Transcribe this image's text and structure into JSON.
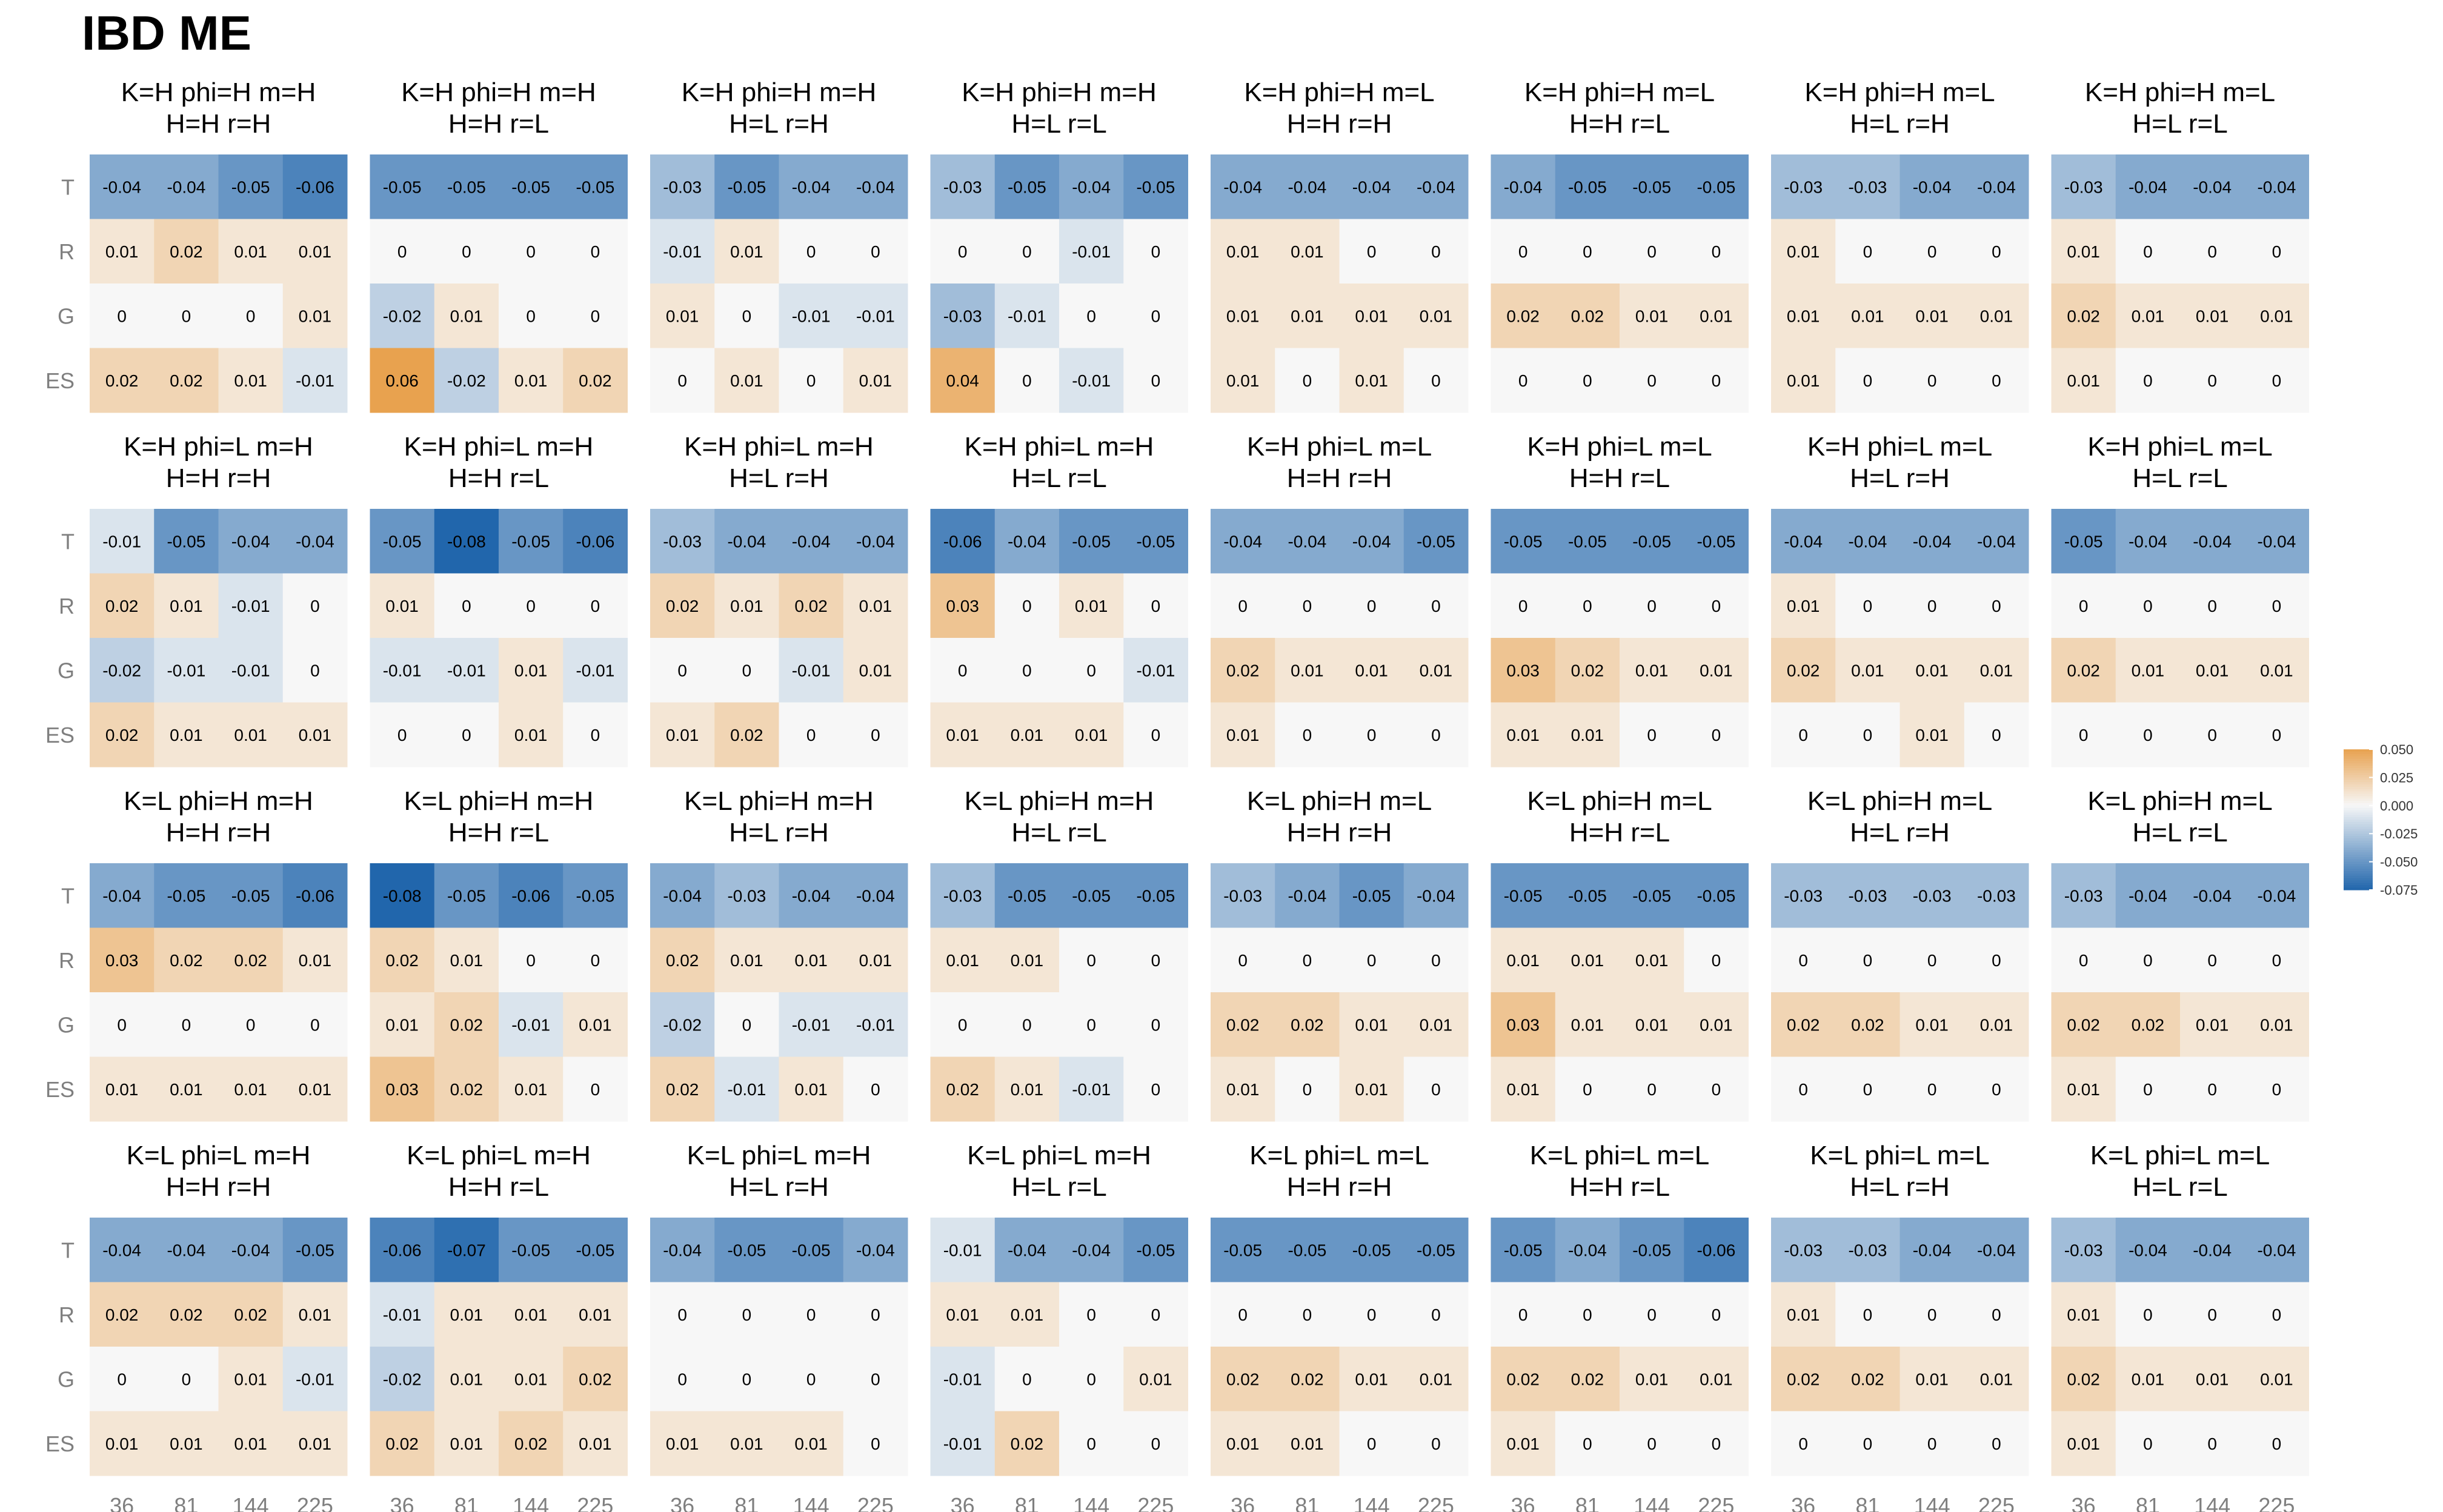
{
  "chart_data": {
    "type": "heatmap",
    "title": "IBD ME",
    "rows": [
      "T",
      "R",
      "G",
      "ES"
    ],
    "columns": [
      "36",
      "81",
      "144",
      "225"
    ],
    "color_scale": {
      "min": -0.075,
      "max": 0.05,
      "low_color": "#2166ac",
      "mid_color": "#f7f7f7",
      "high_color": "#e8a24f",
      "ticks": [
        "0.050",
        "0.025",
        "0.000",
        "-0.025",
        "-0.050",
        "-0.075"
      ],
      "legend_placement": "right"
    },
    "panels": [
      {
        "title": [
          "K=H phi=H m=H",
          "H=H r=H"
        ],
        "values": [
          [
            -0.04,
            -0.04,
            -0.05,
            -0.06
          ],
          [
            0.01,
            0.02,
            0.01,
            0.01
          ],
          [
            0,
            0,
            0,
            0.01
          ],
          [
            0.02,
            0.02,
            0.01,
            -0.01
          ]
        ]
      },
      {
        "title": [
          "K=H phi=H m=H",
          "H=H r=L"
        ],
        "values": [
          [
            -0.05,
            -0.05,
            -0.05,
            -0.05
          ],
          [
            0,
            0,
            0,
            0
          ],
          [
            -0.02,
            0.01,
            0,
            0
          ],
          [
            0.06,
            -0.02,
            0.01,
            0.02
          ]
        ]
      },
      {
        "title": [
          "K=H phi=H m=H",
          "H=L r=H"
        ],
        "values": [
          [
            -0.03,
            -0.05,
            -0.04,
            -0.04
          ],
          [
            -0.01,
            0.01,
            0,
            0
          ],
          [
            0.01,
            0,
            -0.01,
            -0.01
          ],
          [
            0,
            0.01,
            0,
            0.01
          ]
        ]
      },
      {
        "title": [
          "K=H phi=H m=H",
          "H=L r=L"
        ],
        "values": [
          [
            -0.03,
            -0.05,
            -0.04,
            -0.05
          ],
          [
            0,
            0,
            -0.01,
            0
          ],
          [
            -0.03,
            -0.01,
            0,
            0
          ],
          [
            0.04,
            0,
            -0.01,
            0
          ]
        ]
      },
      {
        "title": [
          "K=H phi=H m=L",
          "H=H r=H"
        ],
        "values": [
          [
            -0.04,
            -0.04,
            -0.04,
            -0.04
          ],
          [
            0.01,
            0.01,
            0,
            0
          ],
          [
            0.01,
            0.01,
            0.01,
            0.01
          ],
          [
            0.01,
            0,
            0.01,
            0
          ]
        ]
      },
      {
        "title": [
          "K=H phi=H m=L",
          "H=H r=L"
        ],
        "values": [
          [
            -0.04,
            -0.05,
            -0.05,
            -0.05
          ],
          [
            0,
            0,
            0,
            0
          ],
          [
            0.02,
            0.02,
            0.01,
            0.01
          ],
          [
            0,
            0,
            0,
            0
          ]
        ]
      },
      {
        "title": [
          "K=H phi=H m=L",
          "H=L r=H"
        ],
        "values": [
          [
            -0.03,
            -0.03,
            -0.04,
            -0.04
          ],
          [
            0.01,
            0,
            0,
            0
          ],
          [
            0.01,
            0.01,
            0.01,
            0.01
          ],
          [
            0.01,
            0,
            0,
            0
          ]
        ]
      },
      {
        "title": [
          "K=H phi=H m=L",
          "H=L r=L"
        ],
        "values": [
          [
            -0.03,
            -0.04,
            -0.04,
            -0.04
          ],
          [
            0.01,
            0,
            0,
            0
          ],
          [
            0.02,
            0.01,
            0.01,
            0.01
          ],
          [
            0.01,
            0,
            0,
            0
          ]
        ]
      },
      {
        "title": [
          "K=H phi=L m=H",
          "H=H r=H"
        ],
        "values": [
          [
            -0.01,
            -0.05,
            -0.04,
            -0.04
          ],
          [
            0.02,
            0.01,
            -0.01,
            0
          ],
          [
            -0.02,
            -0.01,
            -0.01,
            0
          ],
          [
            0.02,
            0.01,
            0.01,
            0.01
          ]
        ]
      },
      {
        "title": [
          "K=H phi=L m=H",
          "H=H r=L"
        ],
        "values": [
          [
            -0.05,
            -0.08,
            -0.05,
            -0.06
          ],
          [
            0.01,
            0,
            0,
            0
          ],
          [
            -0.01,
            -0.01,
            0.01,
            -0.01
          ],
          [
            0,
            0,
            0.01,
            0
          ]
        ]
      },
      {
        "title": [
          "K=H phi=L m=H",
          "H=L r=H"
        ],
        "values": [
          [
            -0.03,
            -0.04,
            -0.04,
            -0.04
          ],
          [
            0.02,
            0.01,
            0.02,
            0.01
          ],
          [
            0,
            0,
            -0.01,
            0.01
          ],
          [
            0.01,
            0.02,
            0,
            0
          ]
        ]
      },
      {
        "title": [
          "K=H phi=L m=H",
          "H=L r=L"
        ],
        "values": [
          [
            -0.06,
            -0.04,
            -0.05,
            -0.05
          ],
          [
            0.03,
            0,
            0.01,
            0
          ],
          [
            0,
            0,
            0,
            -0.01
          ],
          [
            0.01,
            0.01,
            0.01,
            0
          ]
        ]
      },
      {
        "title": [
          "K=H phi=L m=L",
          "H=H r=H"
        ],
        "values": [
          [
            -0.04,
            -0.04,
            -0.04,
            -0.05
          ],
          [
            0,
            0,
            0,
            0
          ],
          [
            0.02,
            0.01,
            0.01,
            0.01
          ],
          [
            0.01,
            0,
            0,
            0
          ]
        ]
      },
      {
        "title": [
          "K=H phi=L m=L",
          "H=H r=L"
        ],
        "values": [
          [
            -0.05,
            -0.05,
            -0.05,
            -0.05
          ],
          [
            0,
            0,
            0,
            0
          ],
          [
            0.03,
            0.02,
            0.01,
            0.01
          ],
          [
            0.01,
            0.01,
            0,
            0
          ]
        ]
      },
      {
        "title": [
          "K=H phi=L m=L",
          "H=L r=H"
        ],
        "values": [
          [
            -0.04,
            -0.04,
            -0.04,
            -0.04
          ],
          [
            0.01,
            0,
            0,
            0
          ],
          [
            0.02,
            0.01,
            0.01,
            0.01
          ],
          [
            0,
            0,
            0.01,
            0
          ]
        ]
      },
      {
        "title": [
          "K=H phi=L m=L",
          "H=L r=L"
        ],
        "values": [
          [
            -0.05,
            -0.04,
            -0.04,
            -0.04
          ],
          [
            0,
            0,
            0,
            0
          ],
          [
            0.02,
            0.01,
            0.01,
            0.01
          ],
          [
            0,
            0,
            0,
            0
          ]
        ]
      },
      {
        "title": [
          "K=L phi=H m=H",
          "H=H r=H"
        ],
        "values": [
          [
            -0.04,
            -0.05,
            -0.05,
            -0.06
          ],
          [
            0.03,
            0.02,
            0.02,
            0.01
          ],
          [
            0,
            0,
            0,
            0
          ],
          [
            0.01,
            0.01,
            0.01,
            0.01
          ]
        ]
      },
      {
        "title": [
          "K=L phi=H m=H",
          "H=H r=L"
        ],
        "values": [
          [
            -0.08,
            -0.05,
            -0.06,
            -0.05
          ],
          [
            0.02,
            0.01,
            0,
            0
          ],
          [
            0.01,
            0.02,
            -0.01,
            0.01
          ],
          [
            0.03,
            0.02,
            0.01,
            0
          ]
        ]
      },
      {
        "title": [
          "K=L phi=H m=H",
          "H=L r=H"
        ],
        "values": [
          [
            -0.04,
            -0.03,
            -0.04,
            -0.04
          ],
          [
            0.02,
            0.01,
            0.01,
            0.01
          ],
          [
            -0.02,
            0,
            -0.01,
            -0.01
          ],
          [
            0.02,
            -0.01,
            0.01,
            0
          ]
        ]
      },
      {
        "title": [
          "K=L phi=H m=H",
          "H=L r=L"
        ],
        "values": [
          [
            -0.03,
            -0.05,
            -0.05,
            -0.05
          ],
          [
            0.01,
            0.01,
            0,
            0
          ],
          [
            0,
            0,
            0,
            0
          ],
          [
            0.02,
            0.01,
            -0.01,
            0
          ]
        ]
      },
      {
        "title": [
          "K=L phi=H m=L",
          "H=H r=H"
        ],
        "values": [
          [
            -0.03,
            -0.04,
            -0.05,
            -0.04
          ],
          [
            0,
            0,
            0,
            0
          ],
          [
            0.02,
            0.02,
            0.01,
            0.01
          ],
          [
            0.01,
            0,
            0.01,
            0
          ]
        ]
      },
      {
        "title": [
          "K=L phi=H m=L",
          "H=H r=L"
        ],
        "values": [
          [
            -0.05,
            -0.05,
            -0.05,
            -0.05
          ],
          [
            0.01,
            0.01,
            0.01,
            0
          ],
          [
            0.03,
            0.01,
            0.01,
            0.01
          ],
          [
            0.01,
            0,
            0,
            0
          ]
        ]
      },
      {
        "title": [
          "K=L phi=H m=L",
          "H=L r=H"
        ],
        "values": [
          [
            -0.03,
            -0.03,
            -0.03,
            -0.03
          ],
          [
            0,
            0,
            0,
            0
          ],
          [
            0.02,
            0.02,
            0.01,
            0.01
          ],
          [
            0,
            0,
            0,
            0
          ]
        ]
      },
      {
        "title": [
          "K=L phi=H m=L",
          "H=L r=L"
        ],
        "values": [
          [
            -0.03,
            -0.04,
            -0.04,
            -0.04
          ],
          [
            0,
            0,
            0,
            0
          ],
          [
            0.02,
            0.02,
            0.01,
            0.01
          ],
          [
            0.01,
            0,
            0,
            0
          ]
        ]
      },
      {
        "title": [
          "K=L phi=L m=H",
          "H=H r=H"
        ],
        "values": [
          [
            -0.04,
            -0.04,
            -0.04,
            -0.05
          ],
          [
            0.02,
            0.02,
            0.02,
            0.01
          ],
          [
            0,
            0,
            0.01,
            -0.01
          ],
          [
            0.01,
            0.01,
            0.01,
            0.01
          ]
        ]
      },
      {
        "title": [
          "K=L phi=L m=H",
          "H=H r=L"
        ],
        "values": [
          [
            -0.06,
            -0.07,
            -0.05,
            -0.05
          ],
          [
            -0.01,
            0.01,
            0.01,
            0.01
          ],
          [
            -0.02,
            0.01,
            0.01,
            0.02
          ],
          [
            0.02,
            0.01,
            0.02,
            0.01
          ]
        ]
      },
      {
        "title": [
          "K=L phi=L m=H",
          "H=L r=H"
        ],
        "values": [
          [
            -0.04,
            -0.05,
            -0.05,
            -0.04
          ],
          [
            0,
            0,
            0,
            0
          ],
          [
            0,
            0,
            0,
            0
          ],
          [
            0.01,
            0.01,
            0.01,
            0
          ]
        ]
      },
      {
        "title": [
          "K=L phi=L m=H",
          "H=L r=L"
        ],
        "values": [
          [
            -0.01,
            -0.04,
            -0.04,
            -0.05
          ],
          [
            0.01,
            0.01,
            0,
            0
          ],
          [
            -0.01,
            0,
            0,
            0.01
          ],
          [
            -0.01,
            0.02,
            0,
            0
          ]
        ]
      },
      {
        "title": [
          "K=L phi=L m=L",
          "H=H r=H"
        ],
        "values": [
          [
            -0.05,
            -0.05,
            -0.05,
            -0.05
          ],
          [
            0,
            0,
            0,
            0
          ],
          [
            0.02,
            0.02,
            0.01,
            0.01
          ],
          [
            0.01,
            0.01,
            0,
            0
          ]
        ]
      },
      {
        "title": [
          "K=L phi=L m=L",
          "H=H r=L"
        ],
        "values": [
          [
            -0.05,
            -0.04,
            -0.05,
            -0.06
          ],
          [
            0,
            0,
            0,
            0
          ],
          [
            0.02,
            0.02,
            0.01,
            0.01
          ],
          [
            0.01,
            0,
            0,
            0
          ]
        ]
      },
      {
        "title": [
          "K=L phi=L m=L",
          "H=L r=H"
        ],
        "values": [
          [
            -0.03,
            -0.03,
            -0.04,
            -0.04
          ],
          [
            0.01,
            0,
            0,
            0
          ],
          [
            0.02,
            0.02,
            0.01,
            0.01
          ],
          [
            0,
            0,
            0,
            0
          ]
        ]
      },
      {
        "title": [
          "K=L phi=L m=L",
          "H=L r=L"
        ],
        "values": [
          [
            -0.03,
            -0.04,
            -0.04,
            -0.04
          ],
          [
            0.01,
            0,
            0,
            0
          ],
          [
            0.02,
            0.01,
            0.01,
            0.01
          ],
          [
            0.01,
            0,
            0,
            0
          ]
        ]
      }
    ]
  }
}
